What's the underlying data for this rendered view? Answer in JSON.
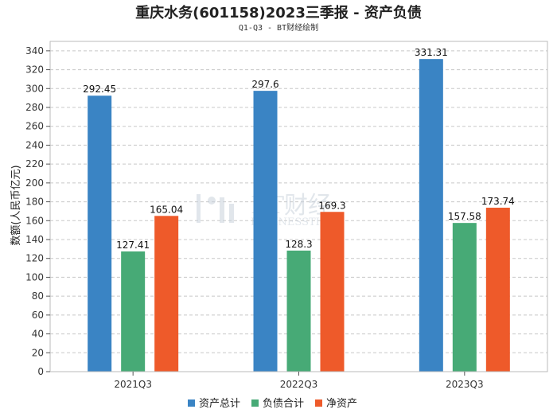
{
  "chart_data": {
    "type": "bar",
    "title": "重庆水务(601158)2023三季报 - 资产负债",
    "subtitle": "Q1-Q3 - BT财经绘制",
    "ylabel": "数额(人民币亿元)",
    "xlabel": "",
    "categories": [
      "2021Q3",
      "2022Q3",
      "2023Q3"
    ],
    "series": [
      {
        "name": "资产总计",
        "color": "#3a84c4",
        "values": [
          292.45,
          297.6,
          331.31
        ],
        "labels": [
          "292.45",
          "297.6",
          "331.31"
        ]
      },
      {
        "name": "负债合计",
        "color": "#47aa76",
        "values": [
          127.41,
          128.3,
          157.58
        ],
        "labels": [
          "127.41",
          "128.3",
          "157.58"
        ]
      },
      {
        "name": "净资产",
        "color": "#ee5a2a",
        "values": [
          165.04,
          169.3,
          173.74
        ],
        "labels": [
          "165.04",
          "169.3",
          "173.74"
        ]
      }
    ],
    "ylim": [
      0,
      350
    ],
    "yticks": [
      0,
      20,
      40,
      60,
      80,
      100,
      120,
      140,
      160,
      180,
      200,
      220,
      240,
      260,
      280,
      300,
      320,
      340
    ],
    "grid": true,
    "legend": "bottom-center"
  },
  "watermark": {
    "main": "BT财经",
    "sub": "BUSINESSTIMES"
  }
}
